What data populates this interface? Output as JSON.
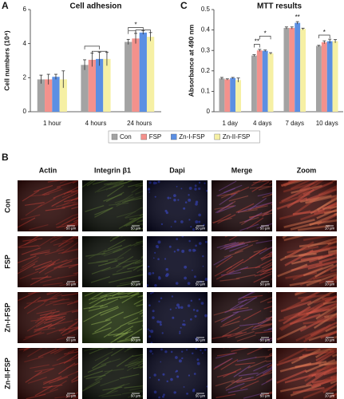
{
  "chart_data": [
    {
      "type": "bar",
      "panel_label": "A",
      "title": "Cell adhesion",
      "y_label": "Cell numbers (10⁴)",
      "categories": [
        "1 hour",
        "4 hours",
        "24 hours"
      ],
      "series": [
        {
          "color": "#a3a3a3",
          "values": [
            1.9,
            2.75,
            4.1
          ],
          "errors": [
            0.25,
            0.3,
            0.15
          ]
        },
        {
          "color": "#f4918c",
          "values": [
            1.9,
            3.05,
            4.3
          ],
          "errors": [
            0.3,
            0.4,
            0.3
          ]
        },
        {
          "color": "#5b8fe3",
          "values": [
            2.05,
            3.1,
            4.65
          ],
          "errors": [
            0.15,
            0.4,
            0.1
          ]
        },
        {
          "color": "#f6f0a4",
          "values": [
            1.9,
            3.1,
            4.4
          ],
          "errors": [
            0.5,
            0.4,
            0.25
          ]
        }
      ],
      "ylim": [
        0,
        6
      ],
      "yticks": [
        0,
        2,
        4,
        6
      ],
      "annotations": [
        "*"
      ]
    },
    {
      "type": "bar",
      "panel_label": "C",
      "title": "MTT results",
      "y_label": "Absorbance at 490 nm",
      "categories": [
        "1 day",
        "4 days",
        "7 days",
        "10 days"
      ],
      "series": [
        {
          "name": "Con",
          "color": "#a3a3a3",
          "values": [
            0.163,
            0.275,
            0.41,
            0.322
          ],
          "errors": [
            0.005,
            0.004,
            0.005,
            0.003
          ]
        },
        {
          "name": "FSP",
          "color": "#f4918c",
          "values": [
            0.158,
            0.3,
            0.41,
            0.34
          ],
          "errors": [
            0.003,
            0.005,
            0.005,
            0.007
          ]
        },
        {
          "name": "Zn-I-FSP",
          "color": "#5b8fe3",
          "values": [
            0.165,
            0.298,
            0.435,
            0.345
          ],
          "errors": [
            0.003,
            0.004,
            0.006,
            0.01
          ]
        },
        {
          "name": "Zn-II-FSP",
          "color": "#f6f0a4",
          "values": [
            0.155,
            0.285,
            0.405,
            0.345
          ],
          "errors": [
            0.01,
            0.004,
            0.004,
            0.008
          ]
        }
      ],
      "ylim": [
        0,
        0.5
      ],
      "yticks": [
        0,
        0.1,
        0.2,
        0.3,
        0.4,
        0.5
      ],
      "annotations": [
        "**",
        "*",
        "**",
        "*"
      ]
    }
  ],
  "panel_b": {
    "label": "B",
    "columns": [
      "Actin",
      "Integrin β1",
      "Dapi",
      "Merge",
      "Zoom"
    ],
    "rows": [
      "Con",
      "FSP",
      "Zn-I-FSP",
      "Zn-II-FSP"
    ],
    "scale_bars": [
      "50 µm",
      "50 µm",
      "50 µm",
      "50 µm",
      "10 µm"
    ]
  }
}
